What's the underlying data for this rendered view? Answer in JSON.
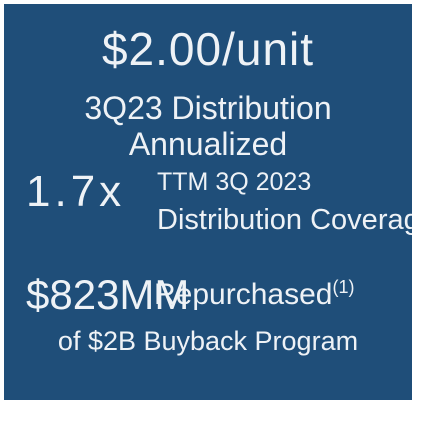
{
  "headline": {
    "value": "$2.00/unit",
    "line1": "3Q23 Distribution",
    "line2": "Annualized"
  },
  "coverage": {
    "value": "1.7x",
    "line1": "TTM 3Q 2023",
    "line2": "Distribution Coverage"
  },
  "buyback": {
    "value": "$823MM",
    "label": "Repurchased",
    "footnote": "(1)",
    "line2": "of $2B Buyback Program"
  }
}
